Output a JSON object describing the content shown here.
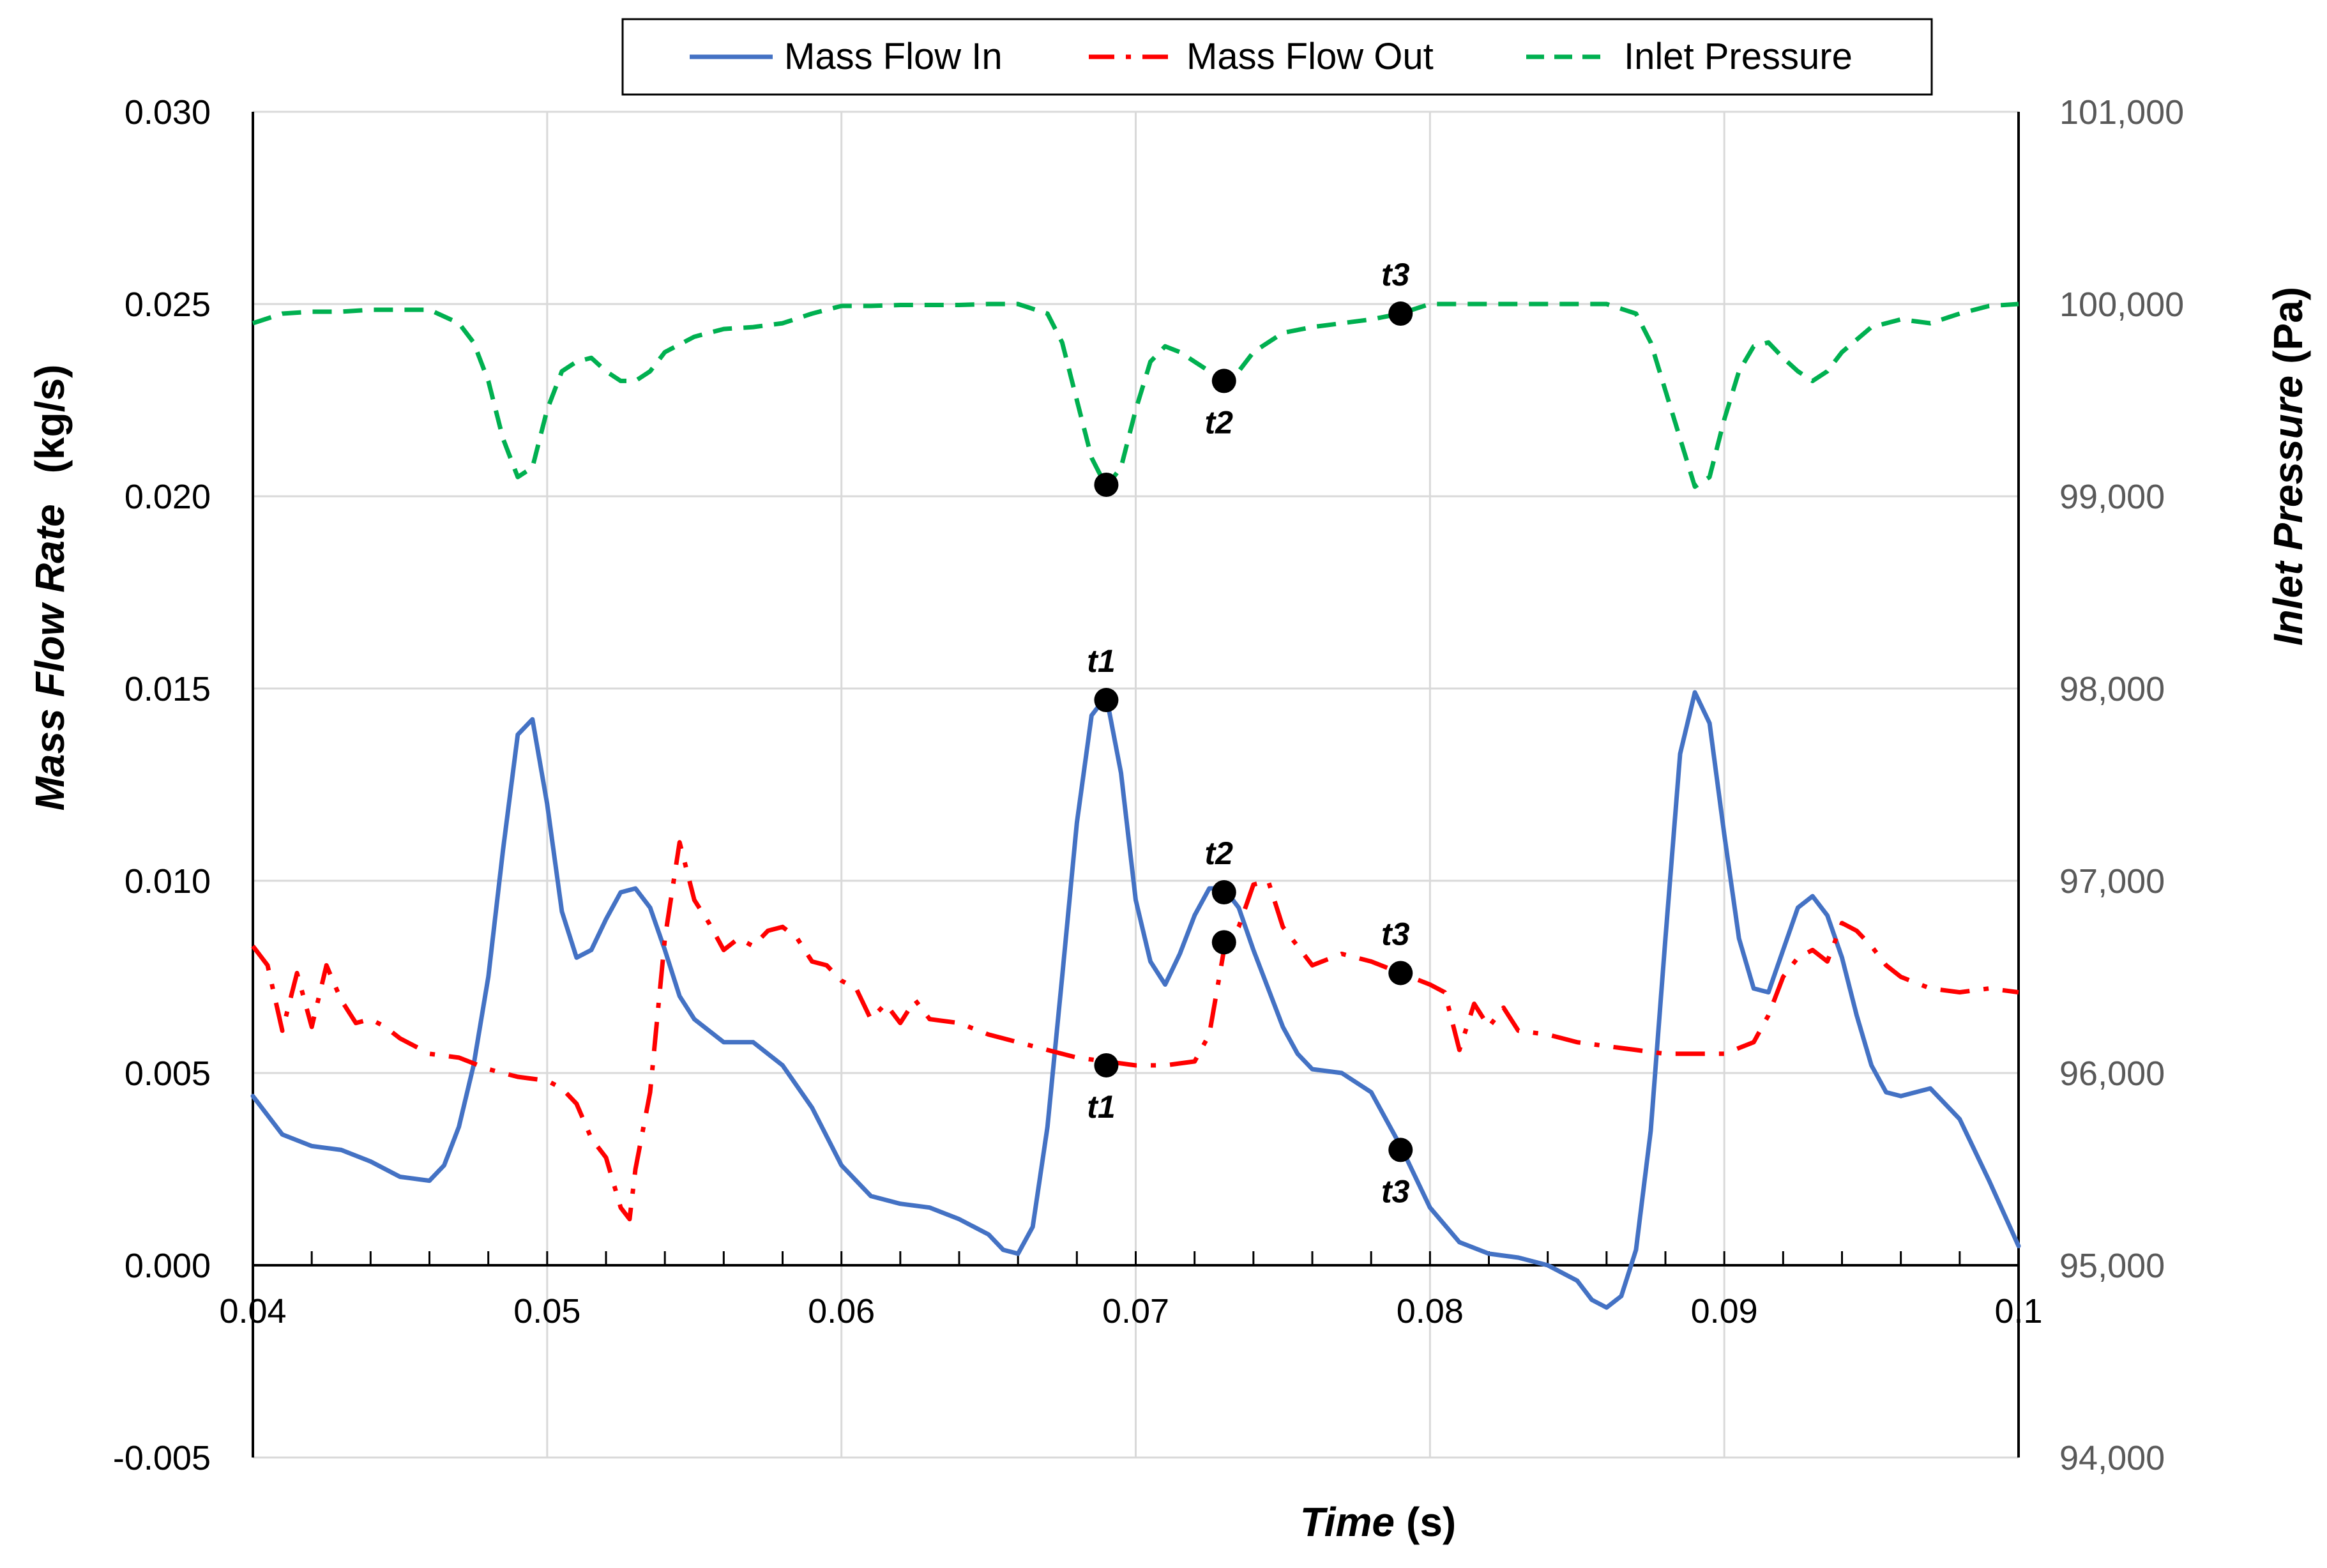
{
  "chart_data": {
    "type": "line",
    "title": "",
    "xlabel_main": "Time",
    "xlabel_unit": "(s)",
    "ylabel_main": "Mass Flow Rate",
    "ylabel_unit": "(kg/s)",
    "y2label_main": "Inlet Pressure",
    "y2label_unit": "(Pa)",
    "xlim": [
      0.04,
      0.1
    ],
    "ylim": [
      -0.005,
      0.03
    ],
    "y2lim": [
      94000,
      101000
    ],
    "x_ticks": [
      0.04,
      0.05,
      0.06,
      0.07,
      0.08,
      0.09,
      0.1
    ],
    "x_tick_labels": [
      "0.04",
      "0.05",
      "0.06",
      "0.07",
      "0.08",
      "0.09",
      "0.1"
    ],
    "y_ticks": [
      -0.005,
      0.0,
      0.005,
      0.01,
      0.015,
      0.02,
      0.025,
      0.03
    ],
    "y_tick_labels": [
      "-0.005",
      "0.000",
      "0.005",
      "0.010",
      "0.015",
      "0.020",
      "0.025",
      "0.030"
    ],
    "y2_ticks": [
      94000,
      95000,
      96000,
      97000,
      98000,
      99000,
      100000,
      101000
    ],
    "y2_tick_labels": [
      "94,000",
      "95,000",
      "96,000",
      "97,000",
      "98,000",
      "99,000",
      "100,000",
      "101,000"
    ],
    "grid": true,
    "legend_position": "top-center",
    "series": [
      {
        "name": "Mass Flow In",
        "axis": "left",
        "color": "#4472C4",
        "style": "solid",
        "x": [
          0.04,
          0.041,
          0.042,
          0.043,
          0.044,
          0.045,
          0.046,
          0.0465,
          0.047,
          0.0475,
          0.048,
          0.0485,
          0.049,
          0.0495,
          0.05,
          0.0505,
          0.051,
          0.0515,
          0.052,
          0.0525,
          0.053,
          0.0535,
          0.054,
          0.0545,
          0.055,
          0.056,
          0.057,
          0.058,
          0.059,
          0.06,
          0.061,
          0.062,
          0.063,
          0.064,
          0.065,
          0.0655,
          0.066,
          0.0665,
          0.067,
          0.0675,
          0.068,
          0.0685,
          0.069,
          0.0695,
          0.07,
          0.0705,
          0.071,
          0.0715,
          0.072,
          0.0725,
          0.073,
          0.0735,
          0.074,
          0.0745,
          0.075,
          0.0755,
          0.076,
          0.077,
          0.078,
          0.079,
          0.08,
          0.081,
          0.082,
          0.083,
          0.084,
          0.085,
          0.0855,
          0.086,
          0.0865,
          0.087,
          0.0875,
          0.088,
          0.0885,
          0.089,
          0.0895,
          0.09,
          0.0905,
          0.091,
          0.0915,
          0.092,
          0.0925,
          0.093,
          0.0935,
          0.094,
          0.0945,
          0.095,
          0.0955,
          0.096,
          0.097,
          0.098,
          0.099,
          0.1
        ],
        "values": [
          0.0044,
          0.0034,
          0.0031,
          0.003,
          0.0027,
          0.0023,
          0.0022,
          0.0026,
          0.0036,
          0.0052,
          0.0075,
          0.0108,
          0.0138,
          0.0142,
          0.012,
          0.0092,
          0.008,
          0.0082,
          0.009,
          0.0097,
          0.0098,
          0.0093,
          0.0082,
          0.007,
          0.0064,
          0.0058,
          0.0058,
          0.0052,
          0.0041,
          0.0026,
          0.0018,
          0.0016,
          0.0015,
          0.0012,
          0.0008,
          0.0004,
          0.0003,
          0.001,
          0.0036,
          0.0075,
          0.0115,
          0.0143,
          0.0148,
          0.0128,
          0.0095,
          0.0079,
          0.0073,
          0.0081,
          0.0091,
          0.0098,
          0.0098,
          0.0093,
          0.0082,
          0.0072,
          0.0062,
          0.0055,
          0.0051,
          0.005,
          0.0045,
          0.0031,
          0.0015,
          0.0006,
          0.0003,
          0.0002,
          0.0,
          -0.0004,
          -0.0009,
          -0.0011,
          -0.0008,
          0.0004,
          0.0035,
          0.0085,
          0.0133,
          0.0149,
          0.0141,
          0.0112,
          0.0085,
          0.0072,
          0.0071,
          0.0082,
          0.0093,
          0.0096,
          0.0091,
          0.008,
          0.0065,
          0.0052,
          0.0045,
          0.0044,
          0.0046,
          0.0038,
          0.0022,
          0.0005
        ]
      },
      {
        "name": "Mass Flow Out",
        "axis": "left",
        "color": "#FF0000",
        "style": "dashdot",
        "x": [
          0.04,
          0.0405,
          0.041,
          0.0415,
          0.042,
          0.0425,
          0.043,
          0.0435,
          0.044,
          0.0445,
          0.045,
          0.046,
          0.047,
          0.048,
          0.049,
          0.05,
          0.0505,
          0.051,
          0.0515,
          0.052,
          0.0525,
          0.0528,
          0.053,
          0.0535,
          0.054,
          0.0545,
          0.055,
          0.0555,
          0.056,
          0.0565,
          0.057,
          0.0575,
          0.058,
          0.0585,
          0.059,
          0.0595,
          0.06,
          0.0605,
          0.061,
          0.0615,
          0.062,
          0.0625,
          0.063,
          0.064,
          0.065,
          0.066,
          0.067,
          0.068,
          0.069,
          0.07,
          0.071,
          0.072,
          0.0725,
          0.073,
          0.0735,
          0.074,
          0.0745,
          0.075,
          0.076,
          0.077,
          0.078,
          0.079,
          0.08,
          0.0805,
          0.081,
          0.0815,
          0.082,
          0.0825,
          0.083,
          0.084,
          0.085,
          0.086,
          0.087,
          0.088,
          0.089,
          0.09,
          0.091,
          0.0915,
          0.092,
          0.0925,
          0.093,
          0.0935,
          0.094,
          0.0945,
          0.095,
          0.0955,
          0.096,
          0.097,
          0.098,
          0.099,
          0.1
        ],
        "values": [
          0.0083,
          0.0078,
          0.0061,
          0.0076,
          0.0062,
          0.0078,
          0.0069,
          0.0063,
          0.0064,
          0.0062,
          0.0059,
          0.0055,
          0.0054,
          0.0051,
          0.0049,
          0.0048,
          0.0046,
          0.0042,
          0.0033,
          0.0028,
          0.0015,
          0.0012,
          0.0025,
          0.0045,
          0.0085,
          0.011,
          0.0095,
          0.0089,
          0.0082,
          0.0085,
          0.0083,
          0.0087,
          0.0088,
          0.0085,
          0.0079,
          0.0078,
          0.0074,
          0.0072,
          0.0064,
          0.0068,
          0.0063,
          0.0069,
          0.0064,
          0.0063,
          0.006,
          0.0058,
          0.0056,
          0.0054,
          0.0053,
          0.0052,
          0.0052,
          0.0053,
          0.006,
          0.0082,
          0.0088,
          0.0099,
          0.01,
          0.0088,
          0.0078,
          0.0081,
          0.0079,
          0.0076,
          0.0073,
          0.0071,
          0.0056,
          0.0068,
          0.0062,
          0.0067,
          0.0061,
          0.006,
          0.0058,
          0.0057,
          0.0056,
          0.0055,
          0.0055,
          0.0055,
          0.0058,
          0.0065,
          0.0075,
          0.008,
          0.0082,
          0.0079,
          0.0089,
          0.0087,
          0.0083,
          0.0078,
          0.0075,
          0.0072,
          0.0071,
          0.0072,
          0.0071
        ]
      },
      {
        "name": "Inlet Pressure",
        "axis": "right",
        "color": "#00B050",
        "style": "dashed",
        "x": [
          0.04,
          0.041,
          0.042,
          0.043,
          0.044,
          0.045,
          0.046,
          0.047,
          0.0475,
          0.048,
          0.0485,
          0.049,
          0.0495,
          0.05,
          0.0505,
          0.051,
          0.0515,
          0.052,
          0.0525,
          0.053,
          0.0535,
          0.054,
          0.055,
          0.056,
          0.057,
          0.058,
          0.059,
          0.06,
          0.061,
          0.062,
          0.063,
          0.064,
          0.065,
          0.066,
          0.067,
          0.0675,
          0.068,
          0.0685,
          0.069,
          0.0695,
          0.07,
          0.0705,
          0.071,
          0.0715,
          0.072,
          0.0725,
          0.073,
          0.0735,
          0.074,
          0.075,
          0.076,
          0.077,
          0.078,
          0.079,
          0.08,
          0.081,
          0.082,
          0.083,
          0.084,
          0.085,
          0.086,
          0.087,
          0.0875,
          0.088,
          0.0885,
          0.089,
          0.0895,
          0.09,
          0.0905,
          0.091,
          0.0915,
          0.092,
          0.0925,
          0.093,
          0.0935,
          0.094,
          0.095,
          0.096,
          0.097,
          0.098,
          0.099,
          0.1
        ],
        "values": [
          99900,
          99950,
          99960,
          99960,
          99970,
          99970,
          99970,
          99900,
          99800,
          99600,
          99300,
          99100,
          99150,
          99450,
          99650,
          99700,
          99720,
          99650,
          99600,
          99600,
          99650,
          99750,
          99830,
          99870,
          99880,
          99900,
          99950,
          99990,
          99990,
          99995,
          99995,
          99995,
          100000,
          100000,
          99950,
          99800,
          99500,
          99200,
          99050,
          99150,
          99450,
          99700,
          99780,
          99750,
          99700,
          99650,
          99600,
          99650,
          99750,
          99850,
          99880,
          99900,
          99920,
          99950,
          100000,
          100000,
          100000,
          100000,
          100000,
          100000,
          100000,
          99950,
          99800,
          99550,
          99300,
          99050,
          99100,
          99400,
          99650,
          99780,
          99800,
          99720,
          99650,
          99600,
          99650,
          99750,
          99880,
          99920,
          99900,
          99950,
          99990,
          100000
        ]
      }
    ],
    "annotations": [
      {
        "label": "t1",
        "series": "Mass Flow In",
        "x": 0.069,
        "y": 0.0147,
        "label_pos": "above"
      },
      {
        "label": "t2",
        "series": "Mass Flow In",
        "x": 0.073,
        "y": 0.0097,
        "label_pos": "above"
      },
      {
        "label": "t3",
        "series": "Mass Flow In",
        "x": 0.079,
        "y": 0.003,
        "label_pos": "below"
      },
      {
        "label": "t1",
        "series": "Mass Flow Out",
        "x": 0.069,
        "y": 0.0052,
        "label_pos": "below"
      },
      {
        "label": "t2",
        "series": "Mass Flow Out",
        "x": 0.073,
        "y": 0.0084,
        "label_pos": "none"
      },
      {
        "label": "t3",
        "series": "Mass Flow Out",
        "x": 0.079,
        "y": 0.0076,
        "label_pos": "above"
      },
      {
        "label": "t1",
        "series": "Inlet Pressure",
        "x": 0.069,
        "y": 99060,
        "label_pos": "none"
      },
      {
        "label": "t2",
        "series": "Inlet Pressure",
        "x": 0.073,
        "y": 99600,
        "label_pos": "below"
      },
      {
        "label": "t3",
        "series": "Inlet Pressure",
        "x": 0.079,
        "y": 99950,
        "label_pos": "above"
      }
    ]
  }
}
